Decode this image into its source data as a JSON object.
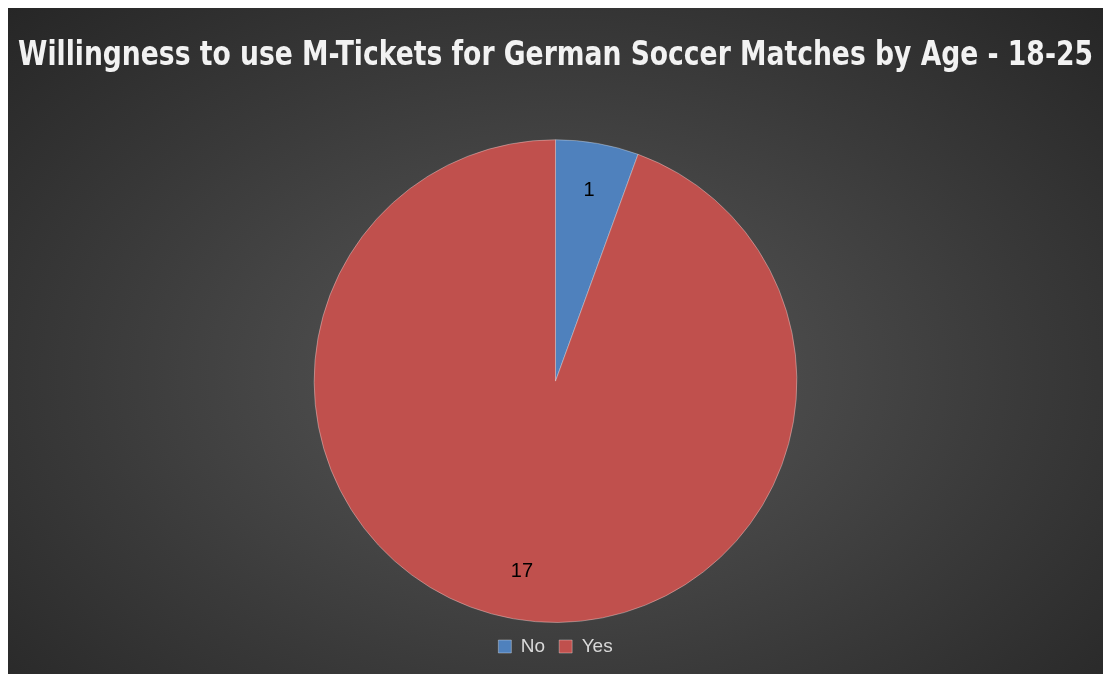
{
  "chart_data": {
    "type": "pie",
    "title": "Willingness to use M-Tickets for German Soccer Matches by Age - 18-25",
    "categories": [
      "No",
      "Yes"
    ],
    "values": [
      1,
      17
    ],
    "colors": [
      "#4f81bd",
      "#c0504d"
    ],
    "data_labels": true,
    "legend": "bottom"
  }
}
